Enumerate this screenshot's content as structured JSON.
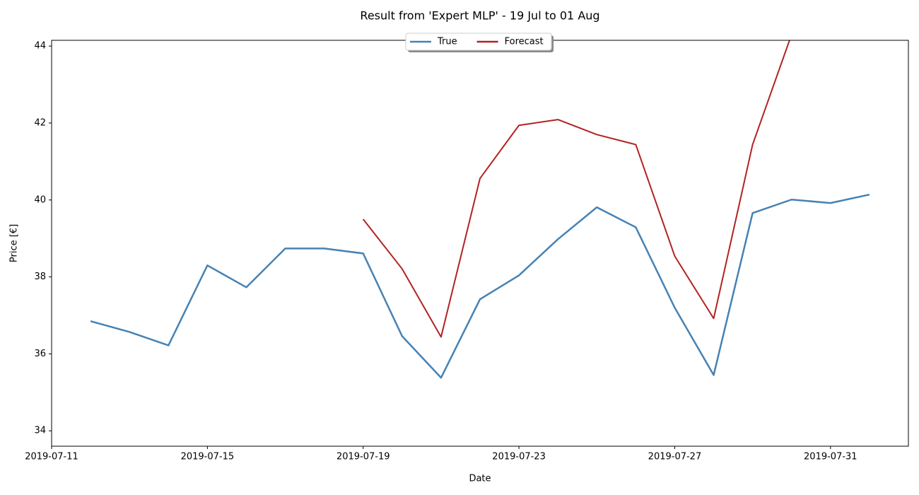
{
  "chart_data": {
    "type": "line",
    "title": "Result from 'Expert MLP' - 19 Jul to 01 Aug",
    "x_label": "Date",
    "y_label": "Price [€]",
    "x": [
      "2019-07-12",
      "2019-07-13",
      "2019-07-14",
      "2019-07-15",
      "2019-07-16",
      "2019-07-17",
      "2019-07-18",
      "2019-07-19",
      "2019-07-20",
      "2019-07-21",
      "2019-07-22",
      "2019-07-23",
      "2019-07-24",
      "2019-07-25",
      "2019-07-26",
      "2019-07-27",
      "2019-07-28",
      "2019-07-29",
      "2019-07-30",
      "2019-07-31",
      "2019-08-01"
    ],
    "series": [
      {
        "name": "True",
        "color": "#4682b4",
        "values": [
          36.85,
          36.57,
          36.22,
          38.3,
          37.73,
          38.74,
          38.74,
          38.61,
          36.46,
          35.38,
          37.42,
          38.04,
          38.98,
          39.81,
          39.29,
          37.2,
          35.45,
          39.66,
          40.01,
          39.92,
          40.14
        ]
      },
      {
        "name": "Forecast",
        "color": "#b22222",
        "values": [
          null,
          null,
          null,
          null,
          null,
          null,
          null,
          39.5,
          38.21,
          36.44,
          40.56,
          41.94,
          42.09,
          41.7,
          41.44,
          38.54,
          36.92,
          41.44,
          44.3,
          null,
          null
        ]
      }
    ],
    "xlim": [
      "2019-07-11",
      "2019-08-02"
    ],
    "xticks": [
      "2019-07-11",
      "2019-07-15",
      "2019-07-19",
      "2019-07-23",
      "2019-07-27",
      "2019-07-31"
    ],
    "ylim": [
      33.6,
      44.15
    ],
    "yticks": [
      34,
      36,
      38,
      40,
      42,
      44
    ],
    "legend": "upper center"
  }
}
